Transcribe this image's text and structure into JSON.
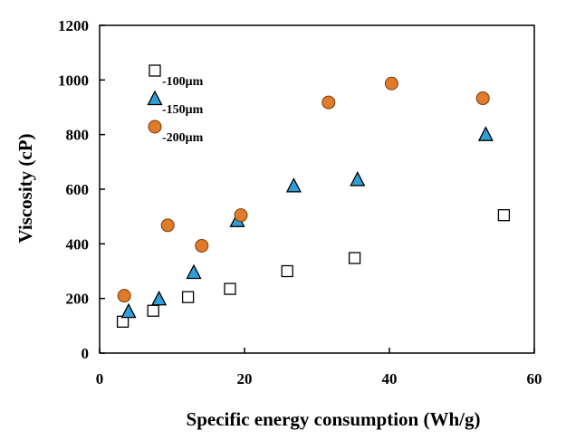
{
  "chart_data": {
    "type": "scatter",
    "title": "",
    "xlabel": "Specific energy consumption (Wh/g)",
    "ylabel": "Viscosity (cP)",
    "xlim": [
      0,
      60
    ],
    "ylim": [
      0,
      1200
    ],
    "xticks": [
      "0",
      "20",
      "40",
      "60"
    ],
    "yticks": [
      "0",
      "200",
      "400",
      "600",
      "800",
      "1000",
      "1200"
    ],
    "grid": false,
    "legend_position": "top-left",
    "series": [
      {
        "name": "-100μm",
        "marker": "square",
        "color": "#ffffff",
        "stroke": "#000000",
        "points": [
          [
            3.2,
            115
          ],
          [
            7.4,
            155
          ],
          [
            12.2,
            205
          ],
          [
            18,
            235
          ],
          [
            25.9,
            300
          ],
          [
            35.2,
            348
          ],
          [
            55.8,
            505
          ]
        ]
      },
      {
        "name": "-150μm",
        "marker": "triangle",
        "color": "#2e9fd8",
        "stroke": "#000000",
        "points": [
          [
            4,
            152
          ],
          [
            8.2,
            198
          ],
          [
            13,
            295
          ],
          [
            19,
            485
          ],
          [
            26.8,
            612
          ],
          [
            35.6,
            635
          ],
          [
            53.3,
            800
          ]
        ]
      },
      {
        "name": "-200μm",
        "marker": "circle",
        "color": "#e07b2a",
        "stroke": "#7a3a0e",
        "points": [
          [
            3.4,
            210
          ],
          [
            9.4,
            468
          ],
          [
            14.1,
            393
          ],
          [
            19.5,
            505
          ],
          [
            31.6,
            918
          ],
          [
            40.3,
            987
          ],
          [
            52.9,
            933
          ]
        ]
      }
    ]
  }
}
